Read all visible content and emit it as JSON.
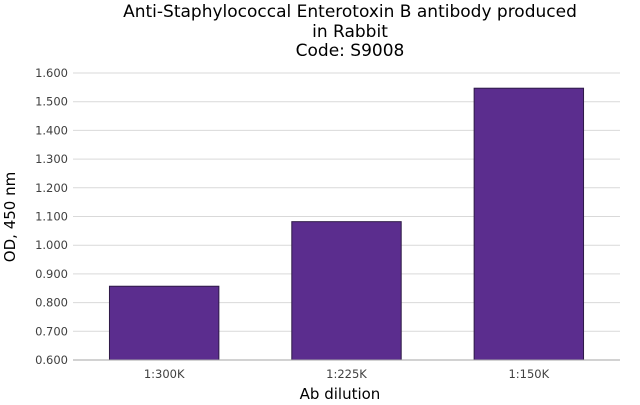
{
  "chart_data": {
    "type": "bar",
    "title_lines": [
      "Anti-Staphylococcal Enterotoxin B antibody produced",
      "in Rabbit",
      "Code: S9008"
    ],
    "xlabel": "Ab dilution",
    "ylabel": "OD, 450 nm",
    "categories": [
      "1:300K",
      "1:225K",
      "1:150K"
    ],
    "values": [
      0.857,
      1.082,
      1.547
    ],
    "ylim": [
      0.6,
      1.6
    ],
    "ytick_step": 0.1,
    "ytick_labels": [
      "0.600",
      "0.700",
      "0.800",
      "0.900",
      "1.000",
      "1.100",
      "1.200",
      "1.300",
      "1.400",
      "1.500",
      "1.600"
    ],
    "grid": true,
    "legend": "none",
    "colors": {
      "bar": "#5b2d8e",
      "bar_edge": "#2e1a47",
      "grid": "#d9d9d9",
      "axis": "#a6a6a6"
    }
  }
}
